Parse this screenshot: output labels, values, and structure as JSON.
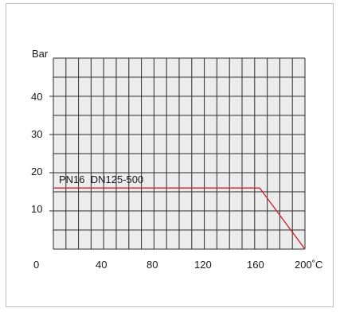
{
  "chart_data": {
    "type": "line",
    "ylabel": "Bar",
    "x_ticks": [
      "0",
      "40",
      "80",
      "120",
      "160",
      "200˚C"
    ],
    "y_ticks": [
      "10",
      "20",
      "30",
      "40"
    ],
    "xlim": [
      0,
      200
    ],
    "ylim": [
      0,
      50
    ],
    "grid": true,
    "series": [
      {
        "name": "PN16  DN125-500",
        "color": "#d01f2a",
        "x": [
          0,
          164,
          200
        ],
        "y": [
          16,
          16,
          0
        ]
      }
    ]
  }
}
